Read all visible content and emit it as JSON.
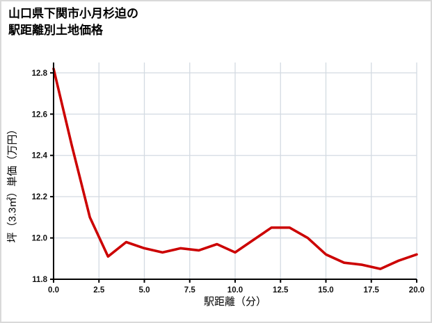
{
  "page": {
    "title_line1": "山口県下関市小月杉迫の",
    "title_line2": "駅距離別土地価格"
  },
  "chart_data": {
    "type": "line",
    "title": "山口県下関市小月杉迫の駅距離別土地価格",
    "xlabel": "駅距離（分）",
    "ylabel": "坪（3.3㎡）単価（万円）",
    "x": [
      0,
      1,
      2,
      3,
      4,
      5,
      6,
      7,
      8,
      9,
      10,
      11,
      12,
      13,
      14,
      15,
      16,
      17,
      18,
      19,
      20
    ],
    "values": [
      12.82,
      12.45,
      12.1,
      11.91,
      11.98,
      11.95,
      11.93,
      11.95,
      11.94,
      11.97,
      11.93,
      11.99,
      12.05,
      12.05,
      12.0,
      11.92,
      11.88,
      11.87,
      11.85,
      11.89,
      11.92
    ],
    "xlim": [
      0,
      20
    ],
    "ylim": [
      11.8,
      12.85
    ],
    "xticks": [
      0,
      2.5,
      5,
      7.5,
      10,
      12.5,
      15,
      17.5,
      20
    ],
    "yticks": [
      11.8,
      12.0,
      12.2,
      12.4,
      12.6,
      12.8
    ],
    "line_color": "#cc0000",
    "axis_color": "#000000",
    "grid": true,
    "grid_color": "#d3dae2",
    "legend_position": "none"
  }
}
